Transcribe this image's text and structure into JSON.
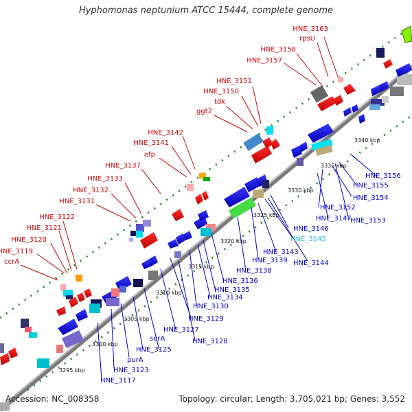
{
  "title": "Hyphomonas neptunium ATCC 15444, complete genome",
  "footer": {
    "accession": "Accession: NC_008358",
    "summary": "Topology: circular; Length: 3,705,021 bp; Genes: 3,552"
  },
  "colors": {
    "backbone": "#777777",
    "forward_label": "#cc0000",
    "reverse_label": "#0000cc",
    "highlight_label": "#33bbee",
    "dotted_track": "#2a8a2a"
  },
  "scale_ticks": [
    "3295 kbp",
    "3300 kbp",
    "3305 kbp",
    "3310 kbp",
    "3315 kbp",
    "3320 kbp",
    "3325 kbp",
    "3330 kbp",
    "3335 kbp",
    "3340 kbp"
  ],
  "forward_labels": [
    "HNE_3163",
    "rpsU",
    "HNE_3158",
    "HNE_3157",
    "HNE_3151",
    "HNE_3150",
    "tdk",
    "ggt2",
    "HNE_3142",
    "HNE_3141",
    "efp",
    "HNE_3137",
    "HNE_3133",
    "HNE_3132",
    "HNE_3131",
    "HNE_3122",
    "HNE_3121",
    "HNE_3120",
    "HNE_3119",
    "ccrA"
  ],
  "reverse_labels": [
    "HNE_3156",
    "HNE_3155",
    "HNE_3154",
    "HNE_3152",
    "HNE_3147",
    "HNE_3153",
    "HNE_3146",
    "HNE_3145",
    "HNE_3143",
    "HNE_3144",
    "HNE_3139",
    "HNE_3138",
    "HNE_3136",
    "HNE_3135",
    "HNE_3134",
    "HNE_3130",
    "HNE_3129",
    "HNE_3127",
    "HNE_3128",
    "serA",
    "HNE_3125",
    "purA",
    "HNE_3123",
    "HNE_3117"
  ],
  "highlighted_label": "HNE_3145"
}
